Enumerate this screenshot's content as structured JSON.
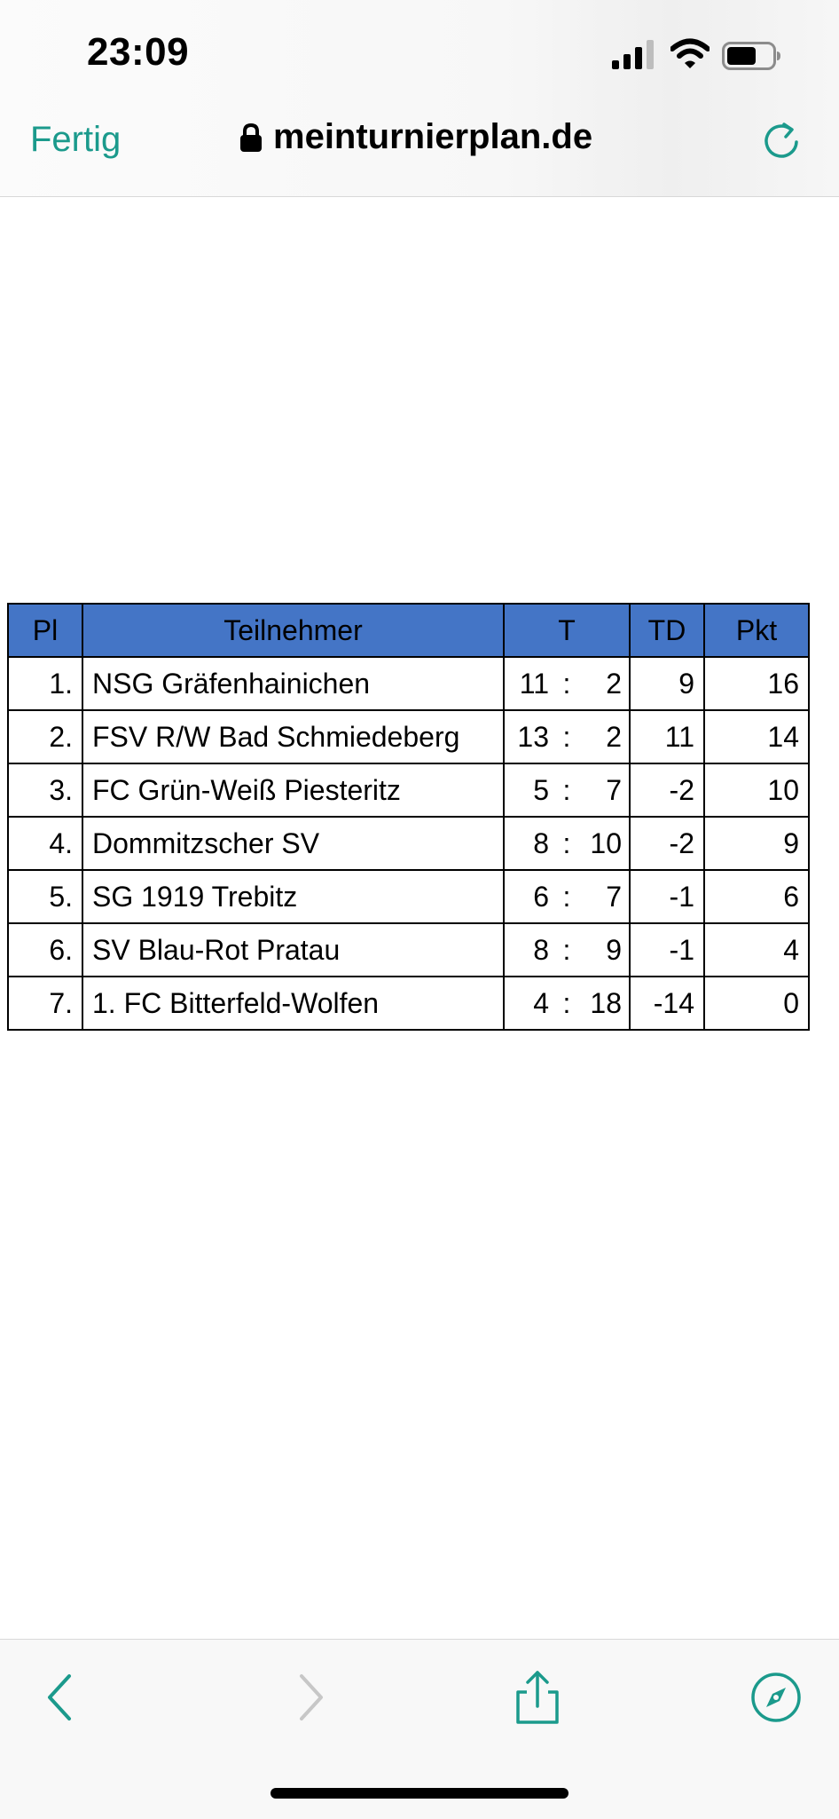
{
  "status_bar": {
    "time": "23:09"
  },
  "nav": {
    "done_label": "Fertig",
    "url": "meinturnierplan.de"
  },
  "colors": {
    "accent": "#1b9a8c",
    "header_bg": "#4475c6",
    "disabled": "#c7c7c7"
  },
  "icons": {
    "signal": "signal-icon",
    "wifi": "wifi-icon",
    "battery": "battery-icon",
    "lock": "lock-icon",
    "reload": "reload-icon",
    "back": "chevron-left-icon",
    "forward": "chevron-right-icon",
    "share": "share-icon",
    "compass": "compass-icon"
  },
  "table": {
    "headers": {
      "place": "Pl",
      "team": "Teilnehmer",
      "goals": "T",
      "diff": "TD",
      "points": "Pkt"
    },
    "rows": [
      {
        "place": "1.",
        "team": "NSG Gräfenhainichen",
        "goals_for": "11",
        "sep": ":",
        "goals_against": "2",
        "diff": "9",
        "points": "16"
      },
      {
        "place": "2.",
        "team": "FSV R/W Bad Schmiedeberg",
        "goals_for": "13",
        "sep": ":",
        "goals_against": "2",
        "diff": "11",
        "points": "14"
      },
      {
        "place": "3.",
        "team": "FC Grün-Weiß Piesteritz",
        "goals_for": "5",
        "sep": ":",
        "goals_against": "7",
        "diff": "-2",
        "points": "10"
      },
      {
        "place": "4.",
        "team": "Dommitzscher SV",
        "goals_for": "8",
        "sep": ":",
        "goals_against": "10",
        "diff": "-2",
        "points": "9"
      },
      {
        "place": "5.",
        "team": "SG 1919 Trebitz",
        "goals_for": "6",
        "sep": ":",
        "goals_against": "7",
        "diff": "-1",
        "points": "6"
      },
      {
        "place": "6.",
        "team": "SV Blau-Rot Pratau",
        "goals_for": "8",
        "sep": ":",
        "goals_against": "9",
        "diff": "-1",
        "points": "4"
      },
      {
        "place": "7.",
        "team": "1. FC Bitterfeld-Wolfen",
        "goals_for": "4",
        "sep": ":",
        "goals_against": "18",
        "diff": "-14",
        "points": "0"
      }
    ]
  }
}
